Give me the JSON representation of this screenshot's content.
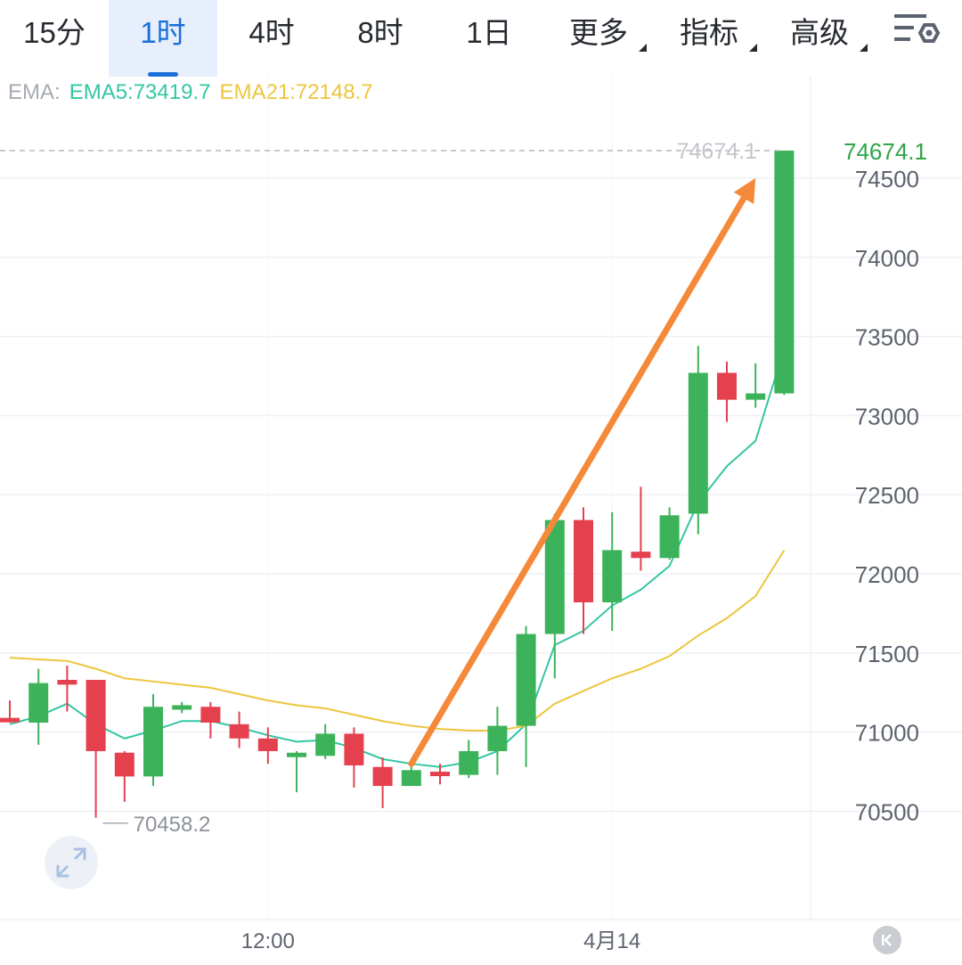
{
  "tabs": [
    {
      "label": "15分",
      "active": false,
      "dropdown": false
    },
    {
      "label": "1时",
      "active": true,
      "dropdown": false
    },
    {
      "label": "4时",
      "active": false,
      "dropdown": false
    },
    {
      "label": "8时",
      "active": false,
      "dropdown": false
    },
    {
      "label": "1日",
      "active": false,
      "dropdown": false
    },
    {
      "label": "更多",
      "active": false,
      "dropdown": true
    },
    {
      "label": "指标",
      "active": false,
      "dropdown": true
    },
    {
      "label": "高级",
      "active": false,
      "dropdown": true
    }
  ],
  "settings_icon": "chart-settings-icon",
  "legend": {
    "prefix": "EMA:",
    "ema5": "EMA5:73419.7",
    "ema21": "EMA21:72148.7"
  },
  "colors": {
    "up": "#3cb35a",
    "down": "#e4404e",
    "ema5": "#34c6a3",
    "ema21": "#ecc53d",
    "arrow": "#f5893a",
    "active_tab": "#1b6fd8",
    "price_tag": "#2ea547"
  },
  "chart_data": {
    "type": "candlestick",
    "interval": "1时",
    "ylim": [
      70300,
      74950
    ],
    "y_ticks": [
      70500,
      71000,
      71500,
      72000,
      72500,
      73000,
      73500,
      74000,
      74500
    ],
    "x_ticks": [
      {
        "label": "12:00",
        "index": 9
      },
      {
        "label": "4月14",
        "index": 21
      }
    ],
    "last_price": "74674.1",
    "last_price_label": "74674.1",
    "low_marker": {
      "label": "70458.2",
      "value": 70458.2,
      "index": 3
    },
    "candles": [
      {
        "o": 71090,
        "h": 71200,
        "l": 71060,
        "c": 71070
      },
      {
        "o": 71060,
        "h": 71400,
        "l": 70920,
        "c": 71310
      },
      {
        "o": 71330,
        "h": 71420,
        "l": 71130,
        "c": 71300
      },
      {
        "o": 71330,
        "h": 71330,
        "l": 70460,
        "c": 70880
      },
      {
        "o": 70870,
        "h": 70880,
        "l": 70560,
        "c": 70720
      },
      {
        "o": 70720,
        "h": 71240,
        "l": 70660,
        "c": 71160
      },
      {
        "o": 71150,
        "h": 71190,
        "l": 71120,
        "c": 71170
      },
      {
        "o": 71160,
        "h": 71190,
        "l": 70960,
        "c": 71060
      },
      {
        "o": 71050,
        "h": 71130,
        "l": 70900,
        "c": 70960
      },
      {
        "o": 70960,
        "h": 71030,
        "l": 70800,
        "c": 70880
      },
      {
        "o": 70870,
        "h": 70880,
        "l": 70620,
        "c": 70870
      },
      {
        "o": 70850,
        "h": 71050,
        "l": 70830,
        "c": 70990
      },
      {
        "o": 70990,
        "h": 71030,
        "l": 70650,
        "c": 70790
      },
      {
        "o": 70780,
        "h": 70840,
        "l": 70520,
        "c": 70660
      },
      {
        "o": 70660,
        "h": 70800,
        "l": 70660,
        "c": 70760
      },
      {
        "o": 70750,
        "h": 70800,
        "l": 70670,
        "c": 70730
      },
      {
        "o": 70730,
        "h": 70950,
        "l": 70710,
        "c": 70880
      },
      {
        "o": 70880,
        "h": 71160,
        "l": 70730,
        "c": 71040
      },
      {
        "o": 71040,
        "h": 71670,
        "l": 70780,
        "c": 71620
      },
      {
        "o": 71620,
        "h": 72380,
        "l": 71340,
        "c": 72340
      },
      {
        "o": 72340,
        "h": 72420,
        "l": 71620,
        "c": 71820
      },
      {
        "o": 71820,
        "h": 72390,
        "l": 71640,
        "c": 72150
      },
      {
        "o": 72140,
        "h": 72550,
        "l": 72020,
        "c": 72100
      },
      {
        "o": 72100,
        "h": 72420,
        "l": 72090,
        "c": 72370
      },
      {
        "o": 72380,
        "h": 73440,
        "l": 72250,
        "c": 73270
      },
      {
        "o": 73270,
        "h": 73340,
        "l": 72960,
        "c": 73100
      },
      {
        "o": 73100,
        "h": 73330,
        "l": 73050,
        "c": 73140
      },
      {
        "o": 73140,
        "h": 74674.1,
        "l": 73130,
        "c": 74674.1
      }
    ],
    "series": [
      {
        "name": "EMA5",
        "values": [
          71050,
          71100,
          71180,
          71050,
          70960,
          71010,
          71070,
          71070,
          71030,
          70980,
          70940,
          70950,
          70900,
          70830,
          70800,
          70780,
          70810,
          70880,
          71050,
          71550,
          71640,
          71800,
          71900,
          72050,
          72450,
          72680,
          72840,
          73420
        ]
      },
      {
        "name": "EMA21",
        "values": [
          71470,
          71460,
          71450,
          71400,
          71340,
          71320,
          71300,
          71280,
          71240,
          71200,
          71170,
          71150,
          71110,
          71070,
          71040,
          71020,
          71010,
          71010,
          71040,
          71180,
          71260,
          71340,
          71400,
          71480,
          71610,
          71720,
          71860,
          72148.7
        ]
      }
    ],
    "annotation": {
      "type": "arrow",
      "from": {
        "index": 14,
        "value": 70800
      },
      "to": {
        "index": 26,
        "value": 74500
      }
    }
  }
}
